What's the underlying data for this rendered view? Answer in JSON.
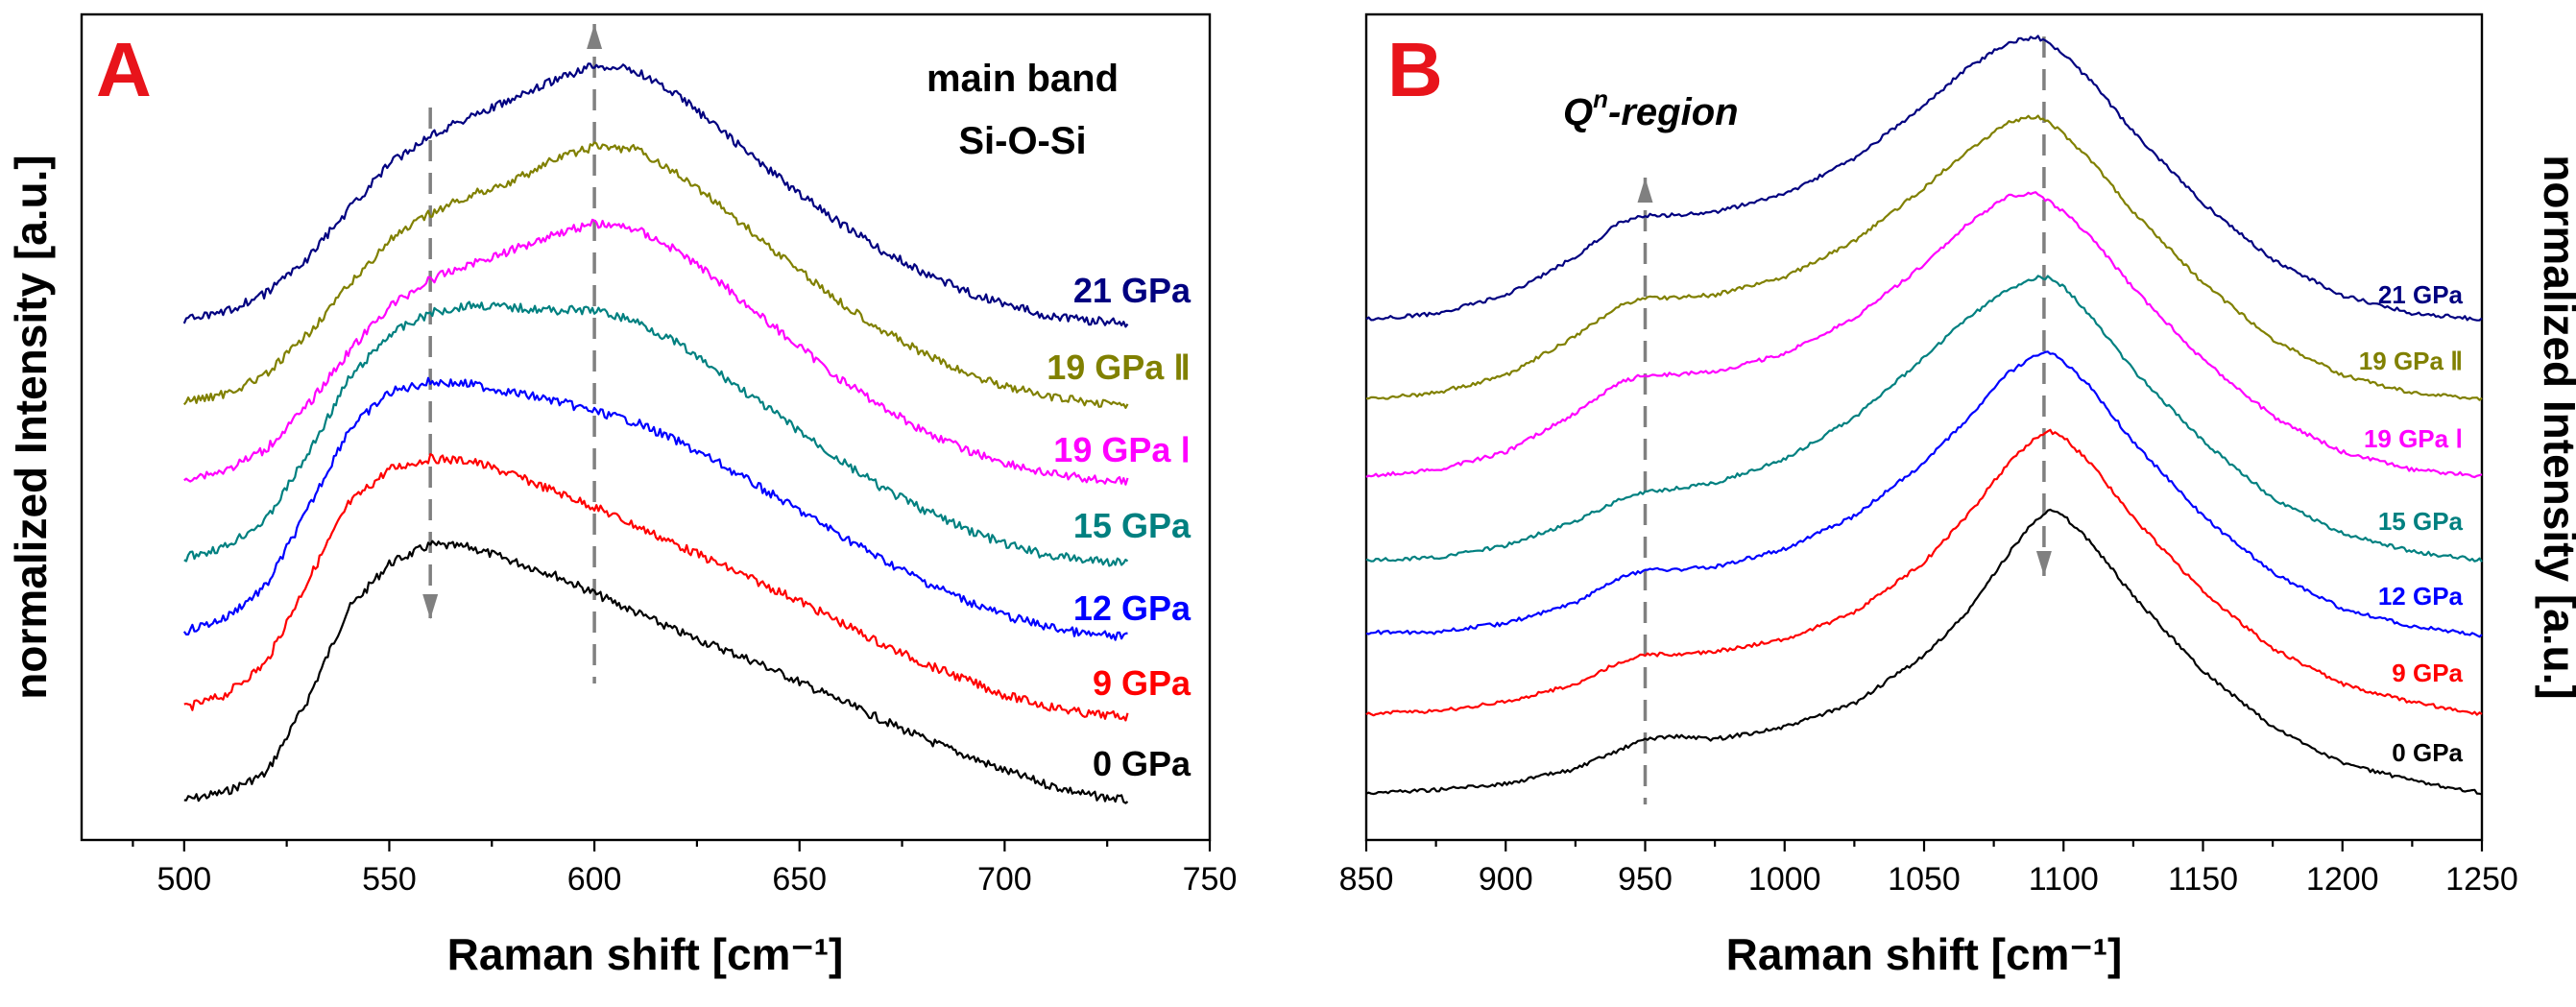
{
  "chart_data": [
    {
      "type": "line",
      "panel": "A",
      "xlabel": "Raman shift [cm⁻¹]",
      "ylabel": "normalized Intensity [a.u.]",
      "xlim": [
        475,
        750
      ],
      "xticks": [
        "500",
        "550",
        "600",
        "650",
        "700",
        "750"
      ],
      "annotations": [
        "main band",
        "Si-O-Si"
      ],
      "arrows": [
        {
          "x": 560,
          "direction": "down"
        },
        {
          "x": 600,
          "direction": "up"
        }
      ],
      "grid": false,
      "series": [
        {
          "name": "0 GPa",
          "color": "#000000",
          "x": [
            500,
            510,
            520,
            530,
            540,
            550,
            560,
            570,
            580,
            590,
            600,
            610,
            620,
            630,
            640,
            650,
            660,
            670,
            680,
            690,
            700,
            710,
            720,
            730
          ],
          "values": [
            0.03,
            0.06,
            0.13,
            0.4,
            0.74,
            0.91,
            0.98,
            0.97,
            0.92,
            0.87,
            0.8,
            0.73,
            0.66,
            0.6,
            0.54,
            0.47,
            0.4,
            0.33,
            0.26,
            0.2,
            0.14,
            0.09,
            0.05,
            0.03
          ]
        },
        {
          "name": "9 GPa",
          "color": "#ff0000",
          "x": [
            500,
            510,
            520,
            530,
            540,
            550,
            560,
            570,
            580,
            590,
            600,
            610,
            620,
            630,
            640,
            650,
            660,
            670,
            680,
            690,
            700,
            710,
            720,
            730
          ],
          "values": [
            0.05,
            0.1,
            0.22,
            0.52,
            0.81,
            0.94,
            0.98,
            0.97,
            0.92,
            0.86,
            0.8,
            0.73,
            0.66,
            0.59,
            0.52,
            0.45,
            0.37,
            0.29,
            0.22,
            0.16,
            0.1,
            0.06,
            0.03,
            0.02
          ]
        },
        {
          "name": "12 GPa",
          "color": "#0000ff",
          "x": [
            500,
            510,
            520,
            530,
            540,
            550,
            560,
            570,
            580,
            590,
            600,
            610,
            620,
            630,
            640,
            650,
            660,
            670,
            680,
            690,
            700,
            710,
            720,
            730
          ],
          "values": [
            0.05,
            0.1,
            0.22,
            0.5,
            0.8,
            0.94,
            0.98,
            0.97,
            0.94,
            0.91,
            0.87,
            0.83,
            0.76,
            0.68,
            0.59,
            0.5,
            0.41,
            0.32,
            0.24,
            0.17,
            0.11,
            0.07,
            0.04,
            0.03
          ]
        },
        {
          "name": "15 GPa",
          "color": "#008080",
          "x": [
            500,
            510,
            520,
            530,
            540,
            550,
            560,
            570,
            580,
            590,
            600,
            610,
            620,
            630,
            640,
            650,
            660,
            670,
            680,
            690,
            700,
            710,
            720,
            730
          ],
          "values": [
            0.04,
            0.08,
            0.18,
            0.42,
            0.7,
            0.87,
            0.95,
            0.98,
            0.97,
            0.96,
            0.96,
            0.92,
            0.84,
            0.73,
            0.62,
            0.51,
            0.4,
            0.3,
            0.22,
            0.15,
            0.09,
            0.05,
            0.03,
            0.02
          ]
        },
        {
          "name": "19 GPa Ⅰ",
          "color": "#ff00ff",
          "x": [
            500,
            510,
            520,
            530,
            540,
            550,
            560,
            570,
            580,
            590,
            600,
            610,
            620,
            630,
            640,
            650,
            660,
            670,
            680,
            690,
            700,
            710,
            720,
            730
          ],
          "values": [
            0.03,
            0.06,
            0.14,
            0.3,
            0.5,
            0.67,
            0.77,
            0.83,
            0.88,
            0.94,
            0.98,
            0.96,
            0.88,
            0.77,
            0.64,
            0.52,
            0.4,
            0.3,
            0.21,
            0.14,
            0.09,
            0.05,
            0.03,
            0.02
          ]
        },
        {
          "name": "19 GPa Ⅱ",
          "color": "#808000",
          "x": [
            500,
            510,
            520,
            530,
            540,
            550,
            560,
            570,
            580,
            590,
            600,
            610,
            620,
            630,
            640,
            650,
            660,
            670,
            680,
            690,
            700,
            710,
            720,
            730
          ],
          "values": [
            0.03,
            0.06,
            0.13,
            0.28,
            0.46,
            0.63,
            0.73,
            0.8,
            0.85,
            0.93,
            0.98,
            0.97,
            0.88,
            0.77,
            0.64,
            0.52,
            0.4,
            0.3,
            0.21,
            0.14,
            0.09,
            0.05,
            0.03,
            0.02
          ]
        },
        {
          "name": "21 GPa",
          "color": "#000080",
          "x": [
            500,
            510,
            520,
            530,
            540,
            550,
            560,
            570,
            580,
            590,
            600,
            610,
            620,
            630,
            640,
            650,
            660,
            670,
            680,
            690,
            700,
            710,
            720,
            730
          ],
          "values": [
            0.03,
            0.06,
            0.13,
            0.26,
            0.44,
            0.61,
            0.72,
            0.79,
            0.85,
            0.92,
            0.98,
            0.96,
            0.87,
            0.75,
            0.62,
            0.5,
            0.39,
            0.29,
            0.21,
            0.14,
            0.09,
            0.05,
            0.03,
            0.02
          ]
        }
      ]
    },
    {
      "type": "line",
      "panel": "B",
      "xlabel": "Raman shift [cm⁻¹]",
      "ylabel": "normalized Intensity [a.u.]",
      "xlim": [
        850,
        1250
      ],
      "xticks": [
        "850",
        "900",
        "950",
        "1000",
        "1050",
        "1100",
        "1150",
        "1200",
        "1250"
      ],
      "annotations": [
        "Q",
        "n",
        "-region"
      ],
      "arrows": [
        {
          "x": 950,
          "direction": "up"
        },
        {
          "x": 1093,
          "direction": "down"
        }
      ],
      "grid": false,
      "series": [
        {
          "name": "0 GPa",
          "color": "#000000",
          "x": [
            850,
            875,
            900,
            925,
            940,
            950,
            960,
            975,
            1000,
            1025,
            1050,
            1065,
            1080,
            1090,
            1095,
            1100,
            1110,
            1125,
            1150,
            1175,
            1200,
            1225,
            1250
          ],
          "values": [
            0.02,
            0.03,
            0.05,
            0.1,
            0.16,
            0.2,
            0.21,
            0.2,
            0.24,
            0.32,
            0.48,
            0.62,
            0.82,
            0.94,
            0.97,
            0.95,
            0.86,
            0.68,
            0.43,
            0.24,
            0.12,
            0.06,
            0.02
          ]
        },
        {
          "name": "9 GPa",
          "color": "#ff0000",
          "x": [
            850,
            875,
            900,
            925,
            940,
            950,
            960,
            975,
            1000,
            1025,
            1050,
            1065,
            1080,
            1090,
            1095,
            1100,
            1110,
            1125,
            1150,
            1175,
            1200,
            1225,
            1250
          ],
          "values": [
            0.02,
            0.03,
            0.06,
            0.12,
            0.19,
            0.22,
            0.22,
            0.23,
            0.27,
            0.36,
            0.53,
            0.68,
            0.86,
            0.95,
            0.97,
            0.95,
            0.86,
            0.68,
            0.43,
            0.24,
            0.12,
            0.06,
            0.02
          ]
        },
        {
          "name": "12 GPa",
          "color": "#0000ff",
          "x": [
            850,
            875,
            900,
            925,
            940,
            950,
            960,
            975,
            1000,
            1025,
            1050,
            1065,
            1080,
            1090,
            1095,
            1100,
            1110,
            1125,
            1150,
            1175,
            1200,
            1225,
            1250
          ],
          "values": [
            0.03,
            0.03,
            0.06,
            0.13,
            0.21,
            0.24,
            0.24,
            0.25,
            0.31,
            0.42,
            0.6,
            0.74,
            0.9,
            0.96,
            0.97,
            0.94,
            0.85,
            0.67,
            0.42,
            0.23,
            0.11,
            0.05,
            0.02
          ]
        },
        {
          "name": "15 GPa",
          "color": "#008080",
          "x": [
            850,
            875,
            900,
            925,
            940,
            950,
            960,
            975,
            1000,
            1025,
            1050,
            1065,
            1080,
            1090,
            1095,
            1100,
            1110,
            1125,
            1150,
            1175,
            1200,
            1225,
            1250
          ],
          "values": [
            0.02,
            0.03,
            0.07,
            0.15,
            0.22,
            0.25,
            0.26,
            0.28,
            0.36,
            0.5,
            0.7,
            0.83,
            0.93,
            0.97,
            0.97,
            0.94,
            0.84,
            0.66,
            0.42,
            0.23,
            0.11,
            0.05,
            0.02
          ]
        },
        {
          "name": "19 GPa Ⅰ",
          "color": "#ff00ff",
          "x": [
            850,
            875,
            900,
            925,
            940,
            950,
            960,
            975,
            1000,
            1025,
            1050,
            1065,
            1080,
            1090,
            1095,
            1100,
            1110,
            1125,
            1150,
            1175,
            1200,
            1225,
            1250
          ],
          "values": [
            0.03,
            0.05,
            0.11,
            0.24,
            0.34,
            0.37,
            0.37,
            0.38,
            0.44,
            0.56,
            0.74,
            0.87,
            0.97,
            0.98,
            0.95,
            0.92,
            0.83,
            0.66,
            0.42,
            0.23,
            0.11,
            0.05,
            0.03
          ]
        },
        {
          "name": "19 GPa Ⅱ",
          "color": "#808000",
          "x": [
            850,
            875,
            900,
            925,
            940,
            950,
            960,
            975,
            1000,
            1025,
            1050,
            1065,
            1080,
            1090,
            1095,
            1100,
            1110,
            1125,
            1150,
            1175,
            1200,
            1225,
            1250
          ],
          "values": [
            0.03,
            0.05,
            0.11,
            0.24,
            0.34,
            0.37,
            0.37,
            0.38,
            0.44,
            0.56,
            0.74,
            0.86,
            0.96,
            0.98,
            0.96,
            0.92,
            0.83,
            0.66,
            0.42,
            0.23,
            0.11,
            0.05,
            0.03
          ]
        },
        {
          "name": "21 GPa",
          "color": "#000080",
          "x": [
            850,
            875,
            900,
            925,
            940,
            950,
            960,
            975,
            1000,
            1025,
            1050,
            1065,
            1080,
            1090,
            1095,
            1100,
            1110,
            1125,
            1150,
            1175,
            1200,
            1225,
            1250
          ],
          "values": [
            0.03,
            0.05,
            0.11,
            0.24,
            0.35,
            0.38,
            0.38,
            0.39,
            0.45,
            0.57,
            0.75,
            0.87,
            0.96,
            0.98,
            0.96,
            0.92,
            0.83,
            0.66,
            0.42,
            0.23,
            0.11,
            0.05,
            0.03
          ]
        }
      ]
    }
  ]
}
